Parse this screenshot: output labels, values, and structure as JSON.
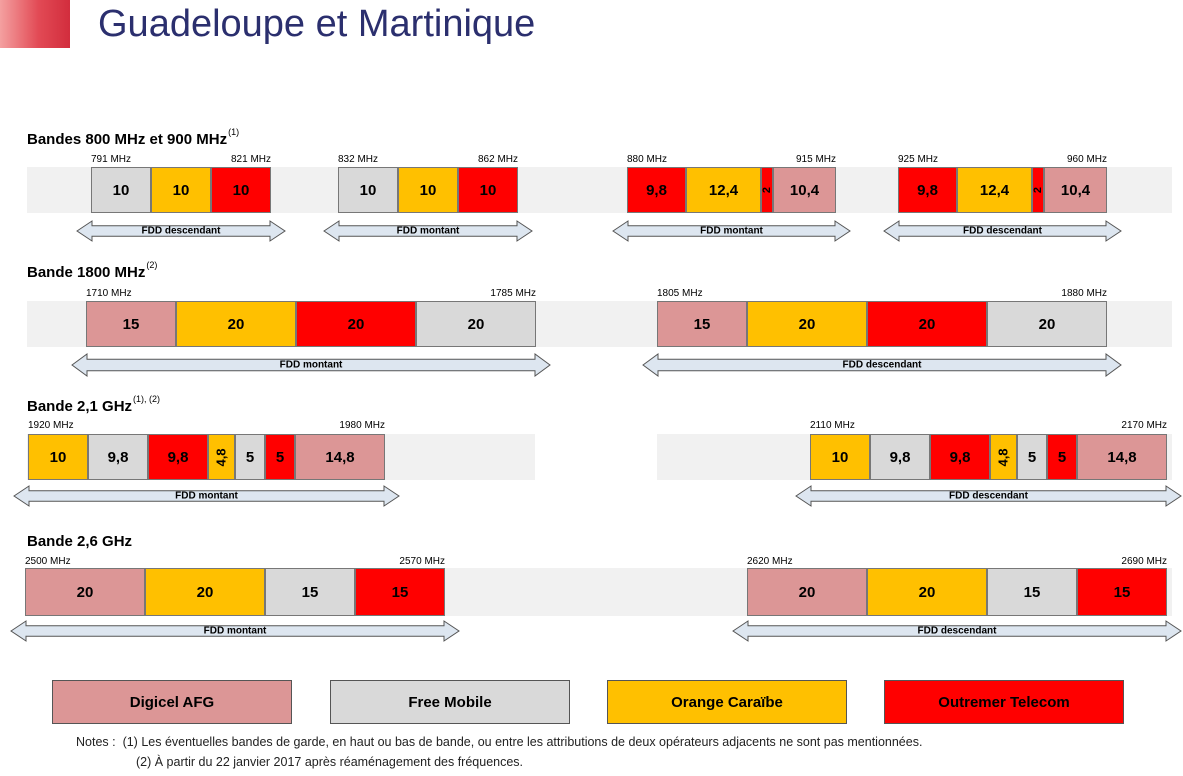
{
  "title": "Guadeloupe et Martinique",
  "colors": {
    "digicel": "#dc9696",
    "free": "#d9d9d9",
    "orange": "#ffc000",
    "outremer": "#ff0000",
    "arrow_fill": "#dde6f0",
    "arrow_stroke": "#555555"
  },
  "sections": [
    {
      "label": "Bandes 800 MHz et 900 MHz",
      "note": "(1)",
      "blocks": [
        {
          "start": "791 MHz",
          "end": "821 MHz",
          "direction": "FDD descendant",
          "segments": [
            {
              "value": "10",
              "operator": "free"
            },
            {
              "value": "10",
              "operator": "orange"
            },
            {
              "value": "10",
              "operator": "outremer"
            }
          ]
        },
        {
          "start": "832 MHz",
          "end": "862 MHz",
          "direction": "FDD montant",
          "segments": [
            {
              "value": "10",
              "operator": "free"
            },
            {
              "value": "10",
              "operator": "orange"
            },
            {
              "value": "10",
              "operator": "outremer"
            }
          ]
        },
        {
          "start": "880 MHz",
          "end": "915 MHz",
          "direction": "FDD montant",
          "segments": [
            {
              "value": "9,8",
              "operator": "outremer"
            },
            {
              "value": "12,4",
              "operator": "orange"
            },
            {
              "value": "2",
              "operator": "outremer"
            },
            {
              "value": "10,4",
              "operator": "digicel"
            }
          ]
        },
        {
          "start": "925 MHz",
          "end": "960 MHz",
          "direction": "FDD descendant",
          "segments": [
            {
              "value": "9,8",
              "operator": "outremer"
            },
            {
              "value": "12,4",
              "operator": "orange"
            },
            {
              "value": "2",
              "operator": "outremer"
            },
            {
              "value": "10,4",
              "operator": "digicel"
            }
          ]
        }
      ]
    },
    {
      "label": "Bande 1800 MHz",
      "note": "(2)",
      "blocks": [
        {
          "start": "1710 MHz",
          "end": "1785 MHz",
          "direction": "FDD montant",
          "segments": [
            {
              "value": "15",
              "operator": "digicel"
            },
            {
              "value": "20",
              "operator": "orange"
            },
            {
              "value": "20",
              "operator": "outremer"
            },
            {
              "value": "20",
              "operator": "free"
            }
          ]
        },
        {
          "start": "1805 MHz",
          "end": "1880 MHz",
          "direction": "FDD descendant",
          "segments": [
            {
              "value": "15",
              "operator": "digicel"
            },
            {
              "value": "20",
              "operator": "orange"
            },
            {
              "value": "20",
              "operator": "outremer"
            },
            {
              "value": "20",
              "operator": "free"
            }
          ]
        }
      ]
    },
    {
      "label": "Bande 2,1 GHz",
      "note": "(1), (2)",
      "blocks": [
        {
          "start": "1920 MHz",
          "end": "1980 MHz",
          "direction": "FDD montant",
          "segments": [
            {
              "value": "10",
              "operator": "orange"
            },
            {
              "value": "9,8",
              "operator": "free"
            },
            {
              "value": "9,8",
              "operator": "outremer"
            },
            {
              "value": "4,8",
              "operator": "orange"
            },
            {
              "value": "5",
              "operator": "free"
            },
            {
              "value": "5",
              "operator": "outremer"
            },
            {
              "value": "14,8",
              "operator": "digicel"
            }
          ]
        },
        {
          "start": "2110 MHz",
          "end": "2170 MHz",
          "direction": "FDD descendant",
          "segments": [
            {
              "value": "10",
              "operator": "orange"
            },
            {
              "value": "9,8",
              "operator": "free"
            },
            {
              "value": "9,8",
              "operator": "outremer"
            },
            {
              "value": "4,8",
              "operator": "orange"
            },
            {
              "value": "5",
              "operator": "free"
            },
            {
              "value": "5",
              "operator": "outremer"
            },
            {
              "value": "14,8",
              "operator": "digicel"
            }
          ]
        }
      ]
    },
    {
      "label": "Bande 2,6 GHz",
      "note": "",
      "blocks": [
        {
          "start": "2500 MHz",
          "end": "2570 MHz",
          "direction": "FDD montant",
          "segments": [
            {
              "value": "20",
              "operator": "digicel"
            },
            {
              "value": "20",
              "operator": "orange"
            },
            {
              "value": "15",
              "operator": "free"
            },
            {
              "value": "15",
              "operator": "outremer"
            }
          ]
        },
        {
          "start": "2620 MHz",
          "end": "2690 MHz",
          "direction": "FDD descendant",
          "segments": [
            {
              "value": "20",
              "operator": "digicel"
            },
            {
              "value": "20",
              "operator": "orange"
            },
            {
              "value": "15",
              "operator": "free"
            },
            {
              "value": "15",
              "operator": "outremer"
            }
          ]
        }
      ]
    }
  ],
  "legend": [
    {
      "operator": "digicel",
      "label": "Digicel AFG"
    },
    {
      "operator": "free",
      "label": "Free Mobile"
    },
    {
      "operator": "orange",
      "label": "Orange Caraïbe"
    },
    {
      "operator": "outremer",
      "label": "Outremer Telecom"
    }
  ],
  "notes": {
    "prefix": "Notes :",
    "lines": [
      "(1) Les éventuelles bandes de garde, en haut ou bas de bande, ou entre les attributions de deux opérateurs adjacents ne sont pas mentionnées.",
      "(2) À partir du 22 janvier 2017 après réaménagement des fréquences."
    ]
  }
}
